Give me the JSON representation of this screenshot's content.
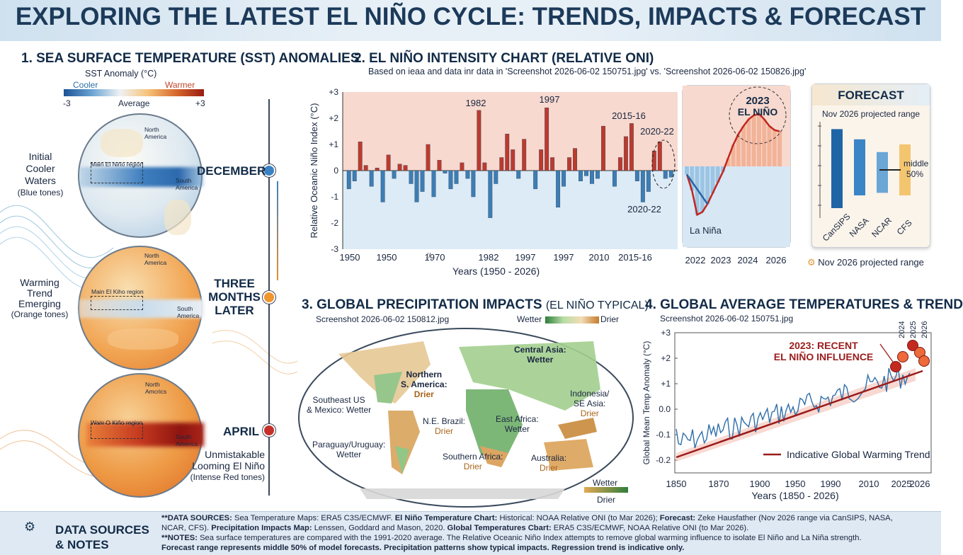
{
  "title": "EXPLORING THE LATEST EL NIÑO CYCLE: TRENDS, IMPACTS & FORECAST",
  "sst": {
    "heading": "1. SEA SURFACE TEMPERATURE (SST) ANOMALIES",
    "legend_title": "SST Anomaly (°C)",
    "legend_cooler": "Cooler",
    "legend_warmer": "Warmer",
    "legend_min": "-3",
    "legend_mid": "Average",
    "legend_max": "+3",
    "stages": [
      {
        "time": "DECEMBER",
        "desc_lines": [
          "Initial",
          "Cooler",
          "Waters",
          "(Blue tones)"
        ],
        "region": "Main El Niño region",
        "na": "North America",
        "sa": "South America"
      },
      {
        "time": "THREE MONTHS LATER",
        "time_lines": [
          "THREE",
          "MONTHS",
          "LATER"
        ],
        "desc_lines": [
          "Warming",
          "Trend",
          "Emerging",
          "(Orange tones)"
        ],
        "region": "Main El Kiho region",
        "na": "North America",
        "sa": "South America"
      },
      {
        "time": "APRIL",
        "desc_lines": [
          "Unmistakable",
          "Looming El Niño",
          "(Intense Red tones)"
        ],
        "region": "Wain O Kiño region",
        "na": "North Amcrics",
        "sa": "South America"
      }
    ]
  },
  "oni": {
    "heading": "2. EL NIÑO INTENSITY CHART (RELATIVE ONI)",
    "subtitle": "Based on ieaa and data inr data in 'Screenshot 2026-06-02 150751.jpg' vs. 'Screenshot 2026-06-02 150826.jpg'",
    "annotations": [
      "1982",
      "1997",
      "2015-16",
      "2020-22",
      "2020-22"
    ]
  },
  "chart_data": [
    {
      "type": "bar",
      "title": "",
      "xlabel": "Years (1950 - 2026)",
      "ylabel": "Relative Oceanic Niño Index (°C)",
      "ylim": [
        -3,
        3
      ],
      "yticks": [
        "+3",
        "+2",
        "+1",
        "0",
        "-1",
        "-2",
        "-3"
      ],
      "xticks": [
        "1950",
        "1950",
        "1970",
        "1982",
        "1997",
        "1997",
        "2010",
        "2015-16"
      ],
      "values": [
        -0.7,
        -0.4,
        1.1,
        0.2,
        -0.6,
        0.1,
        -1.2,
        0.6,
        -0.3,
        0.25,
        0.2,
        -0.5,
        -1.2,
        -0.8,
        1.0,
        -1.0,
        0.4,
        -0.1,
        -0.7,
        -0.5,
        0.3,
        -0.3,
        -1.0,
        2.3,
        0.3,
        -1.8,
        -0.5,
        0.5,
        1.4,
        0.8,
        -0.3,
        1.2,
        0.0,
        -0.7,
        0.8,
        2.4,
        0.5,
        -1.4,
        -0.6,
        0.5,
        0.85,
        -0.4,
        -0.2,
        -0.5,
        -0.3,
        1.7,
        0.0,
        -0.6,
        0.5,
        1.3,
        1.8,
        -0.4,
        -1.2,
        -0.8,
        0.75,
        1.1,
        -0.3,
        -0.25
      ],
      "series_colors": {
        "positive": "#bd3a2d",
        "negative": "#3c7eb4"
      }
    },
    {
      "type": "area",
      "title": "2023 EL NIÑO",
      "annotation": "La Niña",
      "xticks": [
        "2022",
        "2023",
        "2024",
        "2026"
      ],
      "x": [
        2022.0,
        2022.2,
        2022.4,
        2022.6,
        2022.8,
        2023.0,
        2023.2,
        2023.4,
        2023.6,
        2023.8,
        2024.0,
        2024.2,
        2024.4,
        2024.6,
        2024.8,
        2025.0,
        2025.2,
        2025.4,
        2025.6
      ],
      "y": [
        -0.3,
        -0.9,
        -1.8,
        -1.7,
        -1.4,
        -1.0,
        -0.6,
        -0.2,
        0.3,
        0.8,
        1.2,
        1.5,
        1.75,
        1.9,
        1.95,
        1.75,
        1.5,
        1.35,
        1.3
      ],
      "ylim": [
        -3,
        3
      ]
    },
    {
      "type": "bar",
      "title": "FORECAST",
      "subtitle": "Nov 2026 projected range",
      "caption": "Nov 2026 projected range",
      "categories": [
        "CanSIPS",
        "NASA",
        "NCAR",
        "CFS"
      ],
      "ranges": [
        [
          -1.5,
          1.6
        ],
        [
          -1.0,
          1.2
        ],
        [
          -0.9,
          0.7
        ],
        [
          -1.0,
          1.0
        ]
      ],
      "highlight": {
        "label_lines": [
          "middle",
          "50%"
        ],
        "category": "CFS"
      }
    },
    {
      "type": "line",
      "title": "",
      "xlabel": "Years (1850 - 2026)",
      "ylabel": "Global Mean Temp Anomaly (°C)",
      "yticks": [
        "+3",
        "+2",
        "+1",
        "0.0",
        "-0.1",
        "-0.2"
      ],
      "xticks": [
        "1850",
        "1870",
        "1900",
        "1950",
        "1990",
        "2010",
        "2025",
        "2026"
      ],
      "trend_label": "Indicative Global Warming Trend",
      "annotation": [
        "2023: RECENT",
        "EL NIÑO INFLUENCE"
      ],
      "highlight_years": [
        "2024",
        "2025",
        "2026"
      ]
    }
  ],
  "precip": {
    "heading": "3. GLOBAL PRECIPITATION IMPACTS",
    "heading_suffix": "(EL NIÑO TYPICAL)",
    "source": "Screenshot 2026-06-02 150812.jpg",
    "legend_wet": "Wetter",
    "legend_dry": "Drier",
    "regions": [
      {
        "lines": [
          "Central Asia:",
          "Wetter"
        ],
        "color": "#1a2740"
      },
      {
        "lines": [
          "Northern",
          "S. America:"
        ],
        "extra": "Drier"
      },
      {
        "lines": [
          "Southeast US",
          "& Mexico: Wetter"
        ]
      },
      {
        "lines": [
          "Indonesia/",
          "SE Asia:"
        ],
        "extra": "Drier"
      },
      {
        "lines": [
          "N.E. Brazil:"
        ],
        "extra": "Drier"
      },
      {
        "lines": [
          "East Africa:",
          "Wetter"
        ]
      },
      {
        "lines": [
          "Paraguay/Uruguay:",
          "Wetter"
        ]
      },
      {
        "lines": [
          "Southern Africa:"
        ],
        "extra": "Drier"
      },
      {
        "lines": [
          "Australia:"
        ],
        "extra": "Drier"
      }
    ]
  },
  "temps": {
    "heading": "4. GLOBAL AVERAGE TEMPERATURES & TREND",
    "source": "Screenshot 2026-06-02 150751.jpg"
  },
  "footer": {
    "label_line1": "DATA SOURCES",
    "label_line2": "& NOTES",
    "line1_a": "**DATA SOURCES:",
    "line1_b": " Sea Temperature Maps: ",
    "line1_c": "ERA5 C3S/ECMWF. ",
    "line1_d": "El Niño Temperature Chart:",
    "line1_e": " Historical: NOAA Relative ONI (to Mar 2026); ",
    "line1_f": "Forecast:",
    "line1_g": " Zeke Hausfather (Nov 2026 range via CanSIPS, NASA,",
    "line2_a": "NCAR, CFS). ",
    "line2_b": "Precipitation Impacts Map:",
    "line2_c": " Lenssen, Goddard and Mason, 2020. ",
    "line2_d": "Global Temperatures Cbart:",
    "line2_e": " ERA5 C3S/ECMWF, NOAA Relative ONI (to Mar 2026).",
    "line3_a": "**NOTES:",
    "line3_b": " Sea surface temperatures are compared with the 1991-2020 average. The Relative Oceanic Niño Index attempts to remove global warming influence to isolate El Niño and La Niña strength.",
    "line4": "Forecast range represents middle 50% of model forecasts. Precipitation patterns show typical impacts. Regression trend is indicative only."
  }
}
